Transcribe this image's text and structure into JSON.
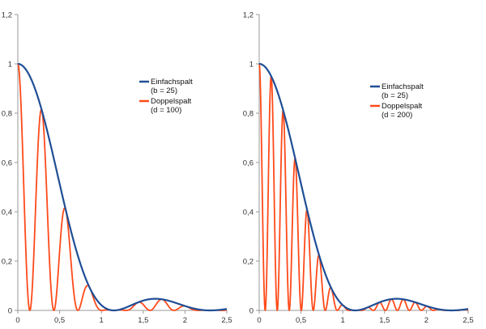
{
  "chart_data": [
    {
      "type": "line",
      "title": "",
      "xlabel": "",
      "ylabel": "",
      "xlim": [
        0,
        2.5
      ],
      "ylim": [
        0,
        1.2
      ],
      "x_ticks": [
        "0",
        "0,5",
        "1",
        "1,5",
        "2",
        "2,5"
      ],
      "y_ticks": [
        "0",
        "0,2",
        "0,4",
        "0,6",
        "0,8",
        "1",
        "1,2"
      ],
      "grid": false,
      "legend_position": "right",
      "series": [
        {
          "name": "Einfachspalt",
          "name_line2": "(b = 25)",
          "color": "#1f4e95",
          "formula": "sinc^2(pi*b*x/(100*pi/ ... ))",
          "b": 25
        },
        {
          "name": "Doppelspalt",
          "name_line2": "(d = 100)",
          "color": "#ff4a1a",
          "b": 25,
          "d": 100
        }
      ],
      "key_points": {
        "first_single_slit_zero_x": 1.15,
        "secondary_max": [
          1.65,
          0.047
        ]
      }
    },
    {
      "type": "line",
      "title": "",
      "xlabel": "",
      "ylabel": "",
      "xlim": [
        0,
        2.5
      ],
      "ylim": [
        0,
        1.2
      ],
      "x_ticks": [
        "0",
        "0,5",
        "1",
        "1,5",
        "2",
        "2,5"
      ],
      "y_ticks": [
        "0",
        "0,2",
        "0,4",
        "0,6",
        "0,8",
        "1",
        "1,2"
      ],
      "grid": false,
      "legend_position": "right",
      "series": [
        {
          "name": "Einfachspalt",
          "name_line2": "(b = 25)",
          "color": "#1f4e95",
          "b": 25
        },
        {
          "name": "Doppelspalt",
          "name_line2": "(d = 200)",
          "color": "#ff4a1a",
          "b": 25,
          "d": 200
        }
      ],
      "key_points": {
        "first_single_slit_zero_x": 1.15,
        "secondary_max": [
          1.65,
          0.047
        ]
      }
    }
  ]
}
